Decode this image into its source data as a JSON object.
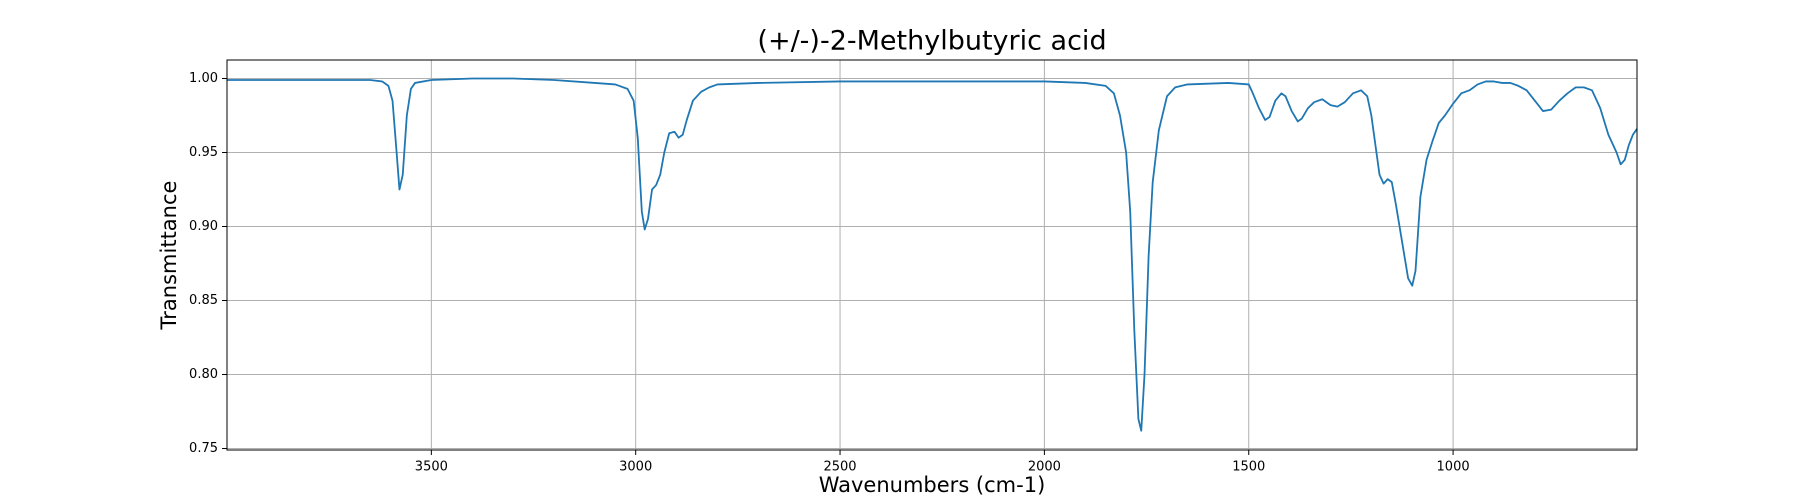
{
  "chart_data": {
    "type": "line",
    "title": "(+/-)-2-Methylbutyric acid",
    "x_label": "Wavenumbers (cm-1)",
    "y_label": "Transmittance",
    "xlim": [
      4000,
      550
    ],
    "ylim": [
      0.749,
      1.0125
    ],
    "xticks": [
      3500,
      3000,
      2500,
      2000,
      1500,
      1000
    ],
    "yticks": [
      {
        "value": 0.75,
        "label": "0.75"
      },
      {
        "value": 0.8,
        "label": "0.80"
      },
      {
        "value": 0.85,
        "label": "0.85"
      },
      {
        "value": 0.9,
        "label": "0.90"
      },
      {
        "value": 0.95,
        "label": "0.95"
      },
      {
        "value": 1,
        "label": "1.00"
      }
    ],
    "grid": true,
    "x": [
      4000,
      3800,
      3650,
      3620,
      3605,
      3595,
      3585,
      3578,
      3570,
      3560,
      3550,
      3540,
      3500,
      3400,
      3300,
      3200,
      3100,
      3050,
      3020,
      3005,
      2995,
      2985,
      2978,
      2970,
      2960,
      2950,
      2940,
      2930,
      2918,
      2905,
      2895,
      2885,
      2875,
      2860,
      2840,
      2820,
      2800,
      2700,
      2500,
      2200,
      2000,
      1900,
      1850,
      1830,
      1815,
      1800,
      1790,
      1780,
      1770,
      1763,
      1755,
      1745,
      1735,
      1720,
      1700,
      1680,
      1650,
      1550,
      1500,
      1490,
      1475,
      1460,
      1449,
      1435,
      1420,
      1410,
      1395,
      1380,
      1370,
      1355,
      1340,
      1320,
      1300,
      1283,
      1265,
      1245,
      1225,
      1210,
      1200,
      1190,
      1180,
      1170,
      1160,
      1150,
      1140,
      1125,
      1110,
      1100,
      1092,
      1080,
      1065,
      1050,
      1035,
      1020,
      1000,
      980,
      960,
      940,
      920,
      900,
      880,
      860,
      840,
      820,
      800,
      780,
      760,
      740,
      720,
      700,
      680,
      660,
      640,
      620,
      600,
      590,
      580,
      570,
      560,
      550
    ],
    "series": [
      {
        "color": "#1f77b4",
        "values": [
          0.999,
          0.999,
          0.999,
          0.998,
          0.995,
          0.985,
          0.95,
          0.925,
          0.935,
          0.975,
          0.993,
          0.997,
          0.999,
          1.0,
          1.0,
          0.999,
          0.997,
          0.996,
          0.993,
          0.985,
          0.96,
          0.91,
          0.898,
          0.905,
          0.925,
          0.928,
          0.935,
          0.95,
          0.963,
          0.964,
          0.96,
          0.962,
          0.972,
          0.985,
          0.991,
          0.994,
          0.996,
          0.997,
          0.998,
          0.998,
          0.998,
          0.997,
          0.995,
          0.99,
          0.975,
          0.95,
          0.91,
          0.83,
          0.77,
          0.762,
          0.8,
          0.88,
          0.93,
          0.965,
          0.988,
          0.994,
          0.996,
          0.997,
          0.996,
          0.99,
          0.98,
          0.972,
          0.974,
          0.985,
          0.99,
          0.988,
          0.978,
          0.971,
          0.973,
          0.98,
          0.984,
          0.986,
          0.982,
          0.981,
          0.984,
          0.99,
          0.992,
          0.988,
          0.975,
          0.955,
          0.935,
          0.929,
          0.932,
          0.93,
          0.915,
          0.89,
          0.865,
          0.86,
          0.87,
          0.92,
          0.945,
          0.958,
          0.97,
          0.975,
          0.983,
          0.99,
          0.992,
          0.996,
          0.998,
          0.998,
          0.997,
          0.997,
          0.995,
          0.992,
          0.985,
          0.978,
          0.979,
          0.985,
          0.99,
          0.994,
          0.994,
          0.992,
          0.98,
          0.962,
          0.95,
          0.942,
          0.945,
          0.955,
          0.962,
          0.966
        ]
      }
    ]
  }
}
